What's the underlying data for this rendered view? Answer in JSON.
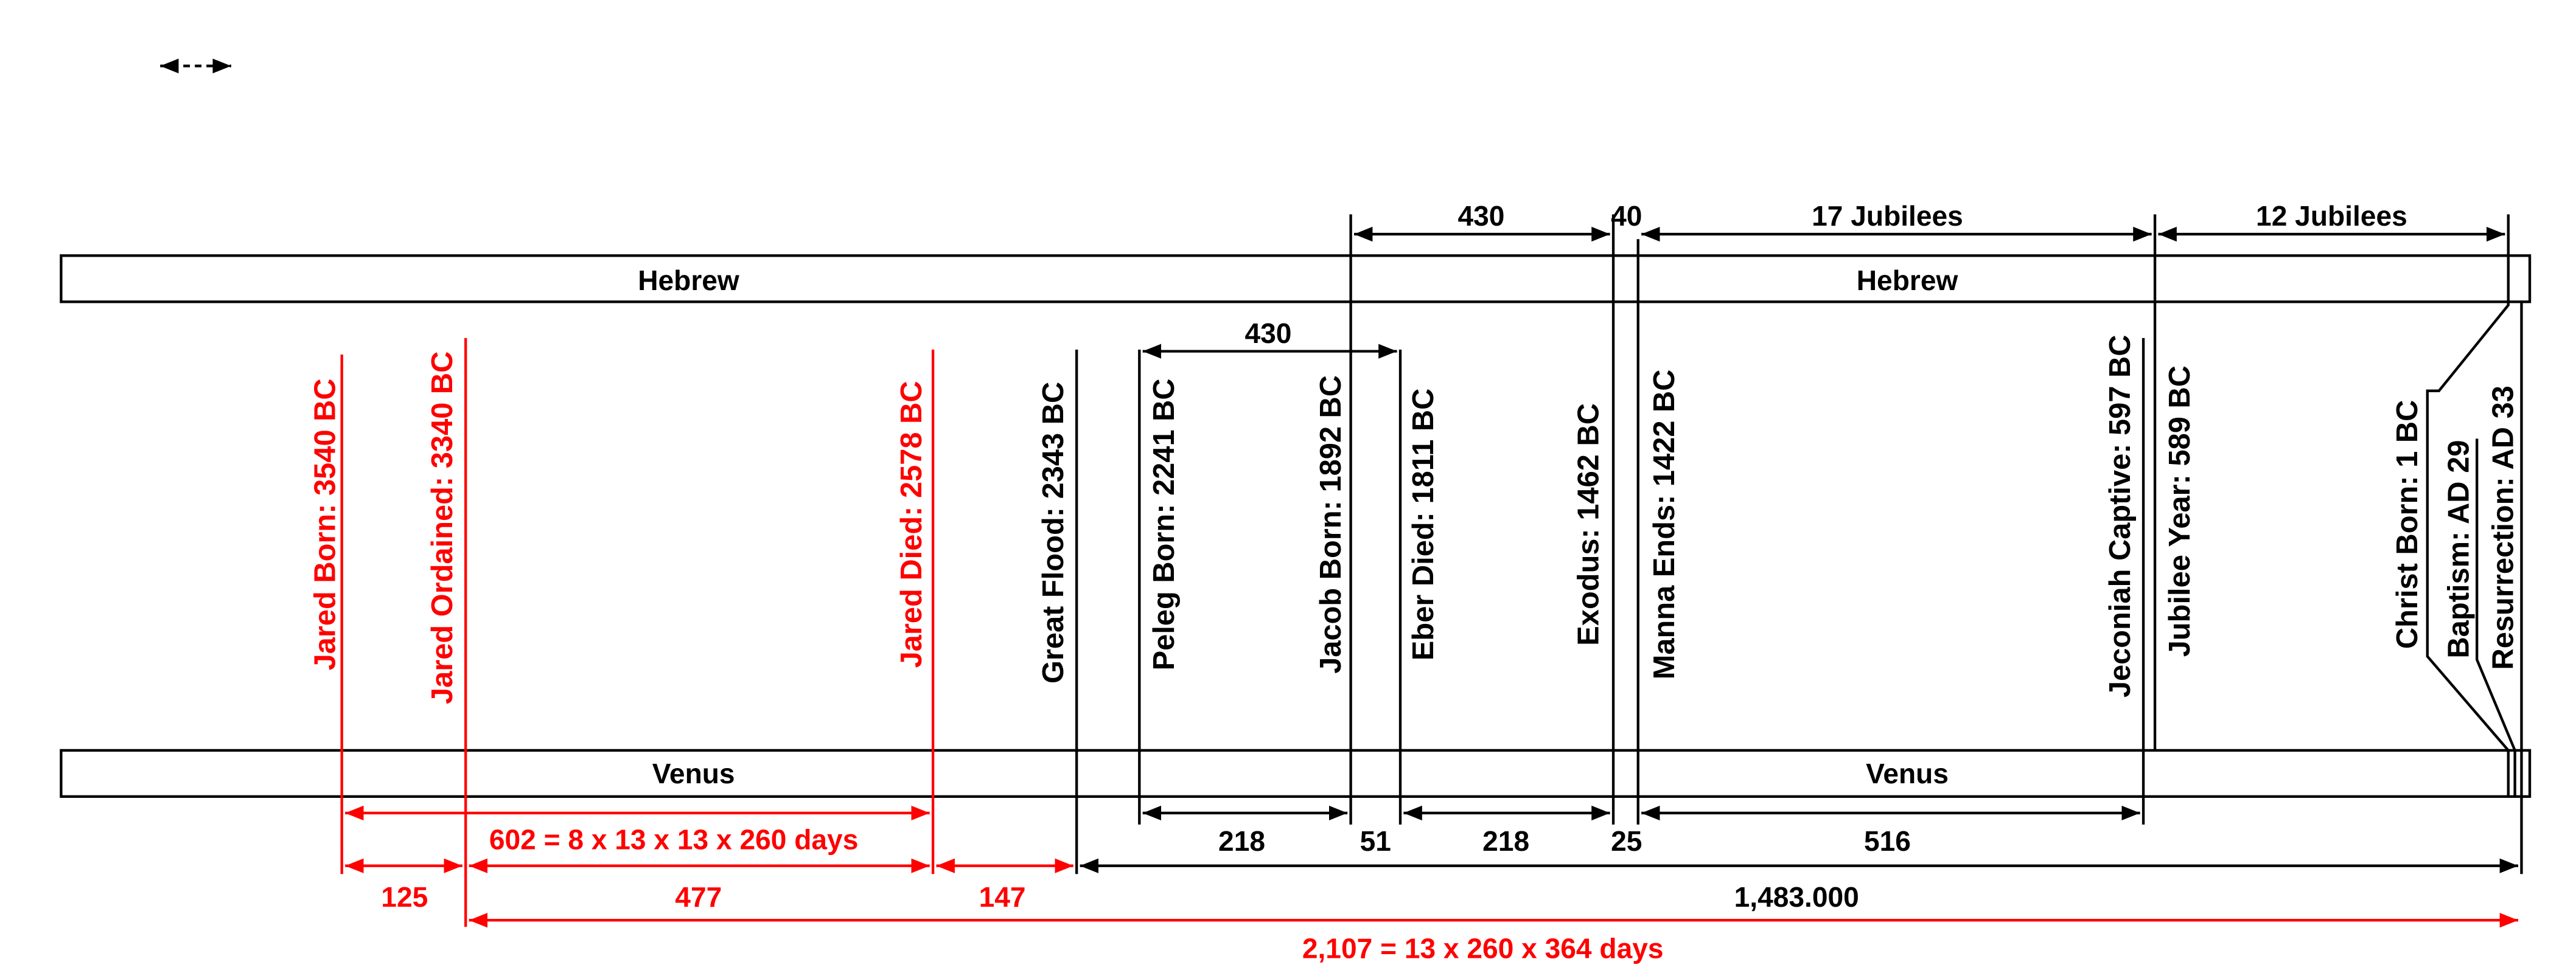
{
  "top_spans": [
    430,
    40,
    "17 Jubilees",
    "12 Jubilees"
  ],
  "bands": {
    "top": [
      "Hebrew",
      "Hebrew"
    ],
    "bottom": [
      "Venus",
      "Venus"
    ]
  },
  "middle_span": 430,
  "events": [
    {
      "label": "Jared Born: 3540 BC",
      "color": "#ff0000"
    },
    {
      "label": "Jared Ordained: 3340 BC",
      "color": "#ff0000"
    },
    {
      "label": "Jared Died: 2578 BC",
      "color": "#ff0000"
    },
    {
      "label": "Great Flood: 2343 BC",
      "color": "#000000"
    },
    {
      "label": "Peleg Born: 2241 BC",
      "color": "#000000"
    },
    {
      "label": "Jacob Born: 1892 BC",
      "color": "#000000"
    },
    {
      "label": "Eber Died: 1811 BC",
      "color": "#000000"
    },
    {
      "label": "Exodus: 1462 BC",
      "color": "#000000"
    },
    {
      "label": "Manna Ends: 1422 BC",
      "color": "#000000"
    },
    {
      "label": "Jeconiah Captive: 597 BC",
      "color": "#000000"
    },
    {
      "label": "Jubilee Year: 589 BC",
      "color": "#000000"
    },
    {
      "label": "Christ Born: 1 BC",
      "color": "#000000"
    },
    {
      "label": "Baptism: AD 29",
      "color": "#000000"
    },
    {
      "label": "Resurrection: AD 33",
      "color": "#000000"
    }
  ],
  "bottom_spans": [
    "602 = 8 x 13 x 13 x 260 days",
    218,
    51,
    218,
    25,
    516,
    125,
    477,
    147,
    "1,483.000",
    "2,107 = 13 x 260 x 364 days"
  ]
}
